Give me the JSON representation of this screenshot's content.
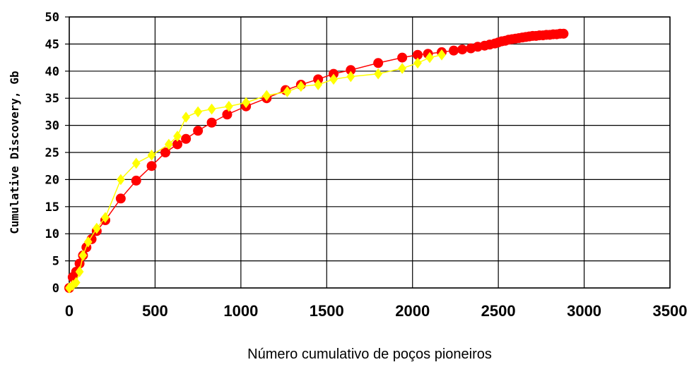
{
  "chart_data": {
    "type": "scatter",
    "xlabel": "Número cumulativo de poços pioneiros",
    "ylabel": "Cumulative Discovery, Gb",
    "xlim": [
      0,
      3500
    ],
    "ylim": [
      0,
      50
    ],
    "x_ticks": [
      "0",
      "500",
      "1000",
      "1500",
      "2000",
      "2500",
      "3000",
      "3500"
    ],
    "y_ticks": [
      "0",
      "5",
      "10",
      "15",
      "20",
      "25",
      "30",
      "35",
      "40",
      "45",
      "50"
    ],
    "grid": true,
    "series": [
      {
        "marker": "circle",
        "color": "#ff0000",
        "x": [
          0,
          20,
          40,
          60,
          80,
          100,
          130,
          160,
          210,
          300,
          390,
          480,
          560,
          630,
          680,
          750,
          830,
          920,
          1030,
          1150,
          1260,
          1350,
          1450,
          1540,
          1640,
          1800,
          1940,
          2030,
          2090,
          2170,
          2240,
          2290,
          2340,
          2380,
          2420,
          2450,
          2480,
          2500,
          2520,
          2540,
          2560,
          2580,
          2600,
          2620,
          2640,
          2660,
          2680,
          2700,
          2720,
          2740,
          2760,
          2780,
          2800,
          2820,
          2840,
          2860,
          2880
        ],
        "y": [
          0,
          2,
          3,
          4.5,
          6,
          7.5,
          9,
          10.5,
          12.5,
          16.5,
          19.8,
          22.5,
          25,
          26.5,
          27.5,
          29,
          30.5,
          32,
          33.5,
          35,
          36.5,
          37.5,
          38.5,
          39.5,
          40.2,
          41.5,
          42.5,
          43,
          43.2,
          43.5,
          43.8,
          44,
          44.2,
          44.5,
          44.7,
          44.9,
          45.1,
          45.3,
          45.5,
          45.6,
          45.8,
          45.9,
          46,
          46.1,
          46.2,
          46.3,
          46.4,
          46.5,
          46.5,
          46.6,
          46.6,
          46.7,
          46.7,
          46.8,
          46.8,
          46.9,
          46.9
        ]
      },
      {
        "marker": "diamond",
        "color": "#ffff00",
        "x": [
          0,
          20,
          40,
          60,
          80,
          110,
          160,
          210,
          300,
          390,
          480,
          580,
          630,
          680,
          750,
          830,
          930,
          1030,
          1150,
          1270,
          1350,
          1450,
          1540,
          1640,
          1800,
          1940,
          2030,
          2100,
          2170
        ],
        "y": [
          0,
          0.5,
          1,
          3,
          6,
          8.5,
          11,
          13,
          20,
          23,
          24.5,
          26.5,
          28,
          31.5,
          32.5,
          33,
          33.5,
          34.2,
          35.5,
          36.2,
          37.2,
          37.5,
          38.5,
          39,
          39.5,
          40.5,
          41.5,
          42.5,
          43
        ]
      }
    ]
  }
}
